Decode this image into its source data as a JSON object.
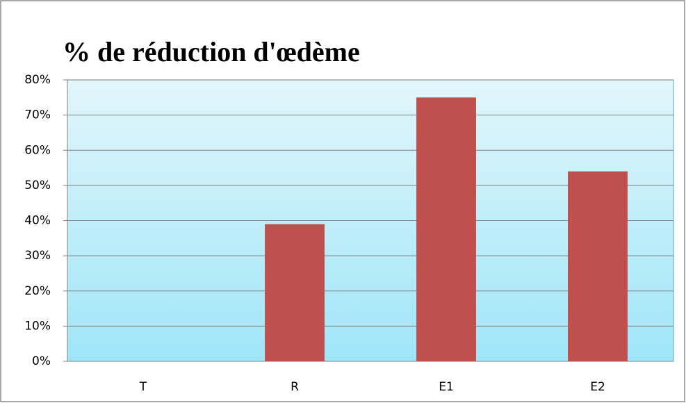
{
  "chart_data": {
    "type": "bar",
    "title": "% de réduction d'œdème",
    "categories": [
      "T",
      "R",
      "E1",
      "E2"
    ],
    "values": [
      0,
      39,
      75,
      54
    ],
    "color": "#c0504d",
    "ylim": [
      0,
      80
    ],
    "yticks": [
      {
        "value": 0,
        "label": "0%"
      },
      {
        "value": 10,
        "label": "10%"
      },
      {
        "value": 20,
        "label": "20%"
      },
      {
        "value": 30,
        "label": "30%"
      },
      {
        "value": 40,
        "label": "40%"
      },
      {
        "value": 50,
        "label": "50%"
      },
      {
        "value": 60,
        "label": "60%"
      },
      {
        "value": 70,
        "label": "70%"
      },
      {
        "value": 80,
        "label": "80%"
      }
    ],
    "grid": true
  }
}
